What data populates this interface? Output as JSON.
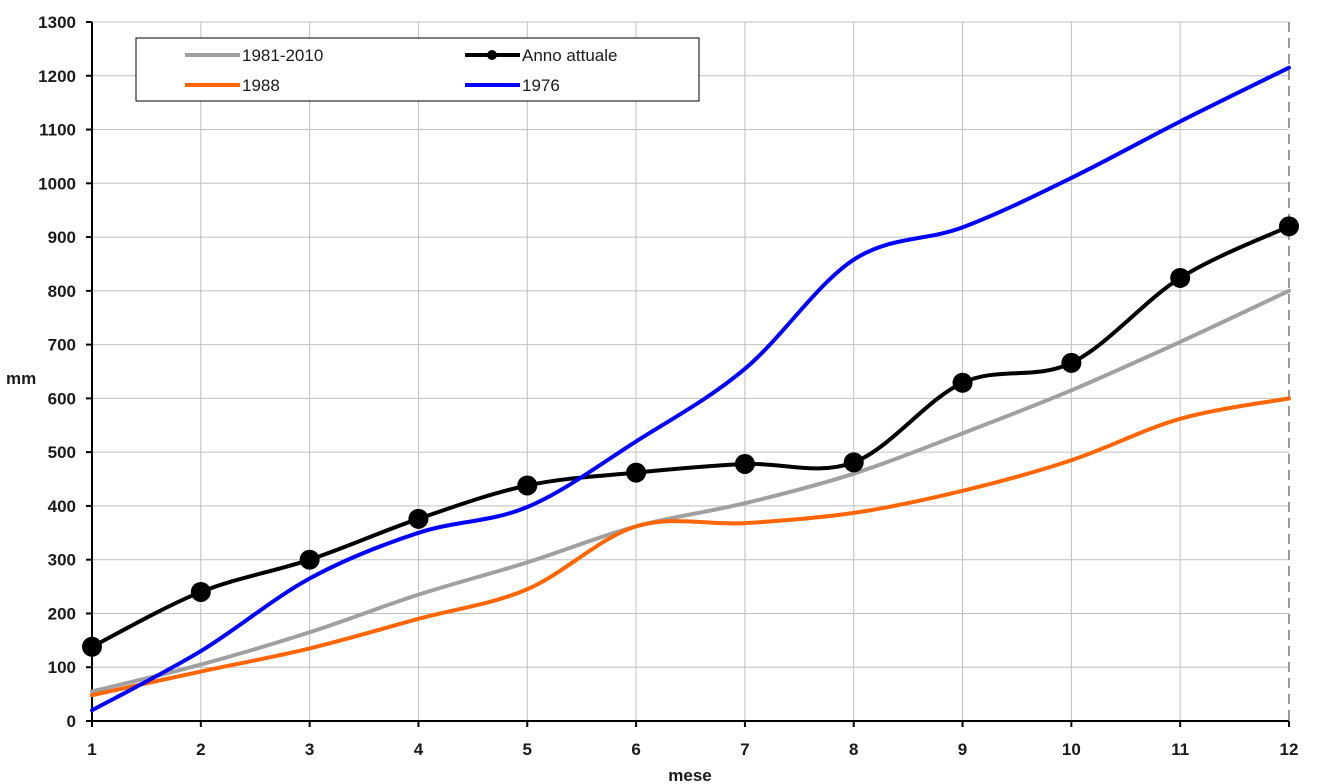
{
  "chart_data": {
    "type": "line",
    "title": "",
    "xlabel": "mese",
    "ylabel": "mm",
    "xlim": [
      1,
      12
    ],
    "ylim": [
      0,
      1300
    ],
    "x_ticks": [
      "1",
      "2",
      "3",
      "4",
      "5",
      "6",
      "7",
      "8",
      "9",
      "10",
      "11",
      "12"
    ],
    "y_ticks": [
      "0",
      "100",
      "200",
      "300",
      "400",
      "500",
      "600",
      "700",
      "800",
      "900",
      "1000",
      "1100",
      "1200",
      "1300"
    ],
    "grid": true,
    "legend_position": "top-left",
    "x": [
      1,
      2,
      3,
      4,
      5,
      6,
      7,
      8,
      9,
      10,
      11,
      12
    ],
    "series": [
      {
        "name": "1981-2010",
        "color": "#a0a0a0",
        "markers": false,
        "values": [
          55,
          105,
          165,
          235,
          295,
          362,
          405,
          460,
          535,
          615,
          705,
          800
        ]
      },
      {
        "name": "Anno attuale",
        "color": "#000000",
        "markers": true,
        "values": [
          138,
          240,
          300,
          376,
          438,
          462,
          478,
          481,
          629,
          666,
          824,
          920
        ]
      },
      {
        "name": "1988",
        "color": "#ff6600",
        "markers": false,
        "values": [
          48,
          92,
          135,
          190,
          245,
          362,
          368,
          387,
          428,
          485,
          562,
          600
        ]
      },
      {
        "name": "1976",
        "color": "#0000ff",
        "markers": false,
        "values": [
          20,
          130,
          265,
          350,
          398,
          520,
          655,
          858,
          918,
          1010,
          1115,
          1215
        ]
      }
    ]
  }
}
